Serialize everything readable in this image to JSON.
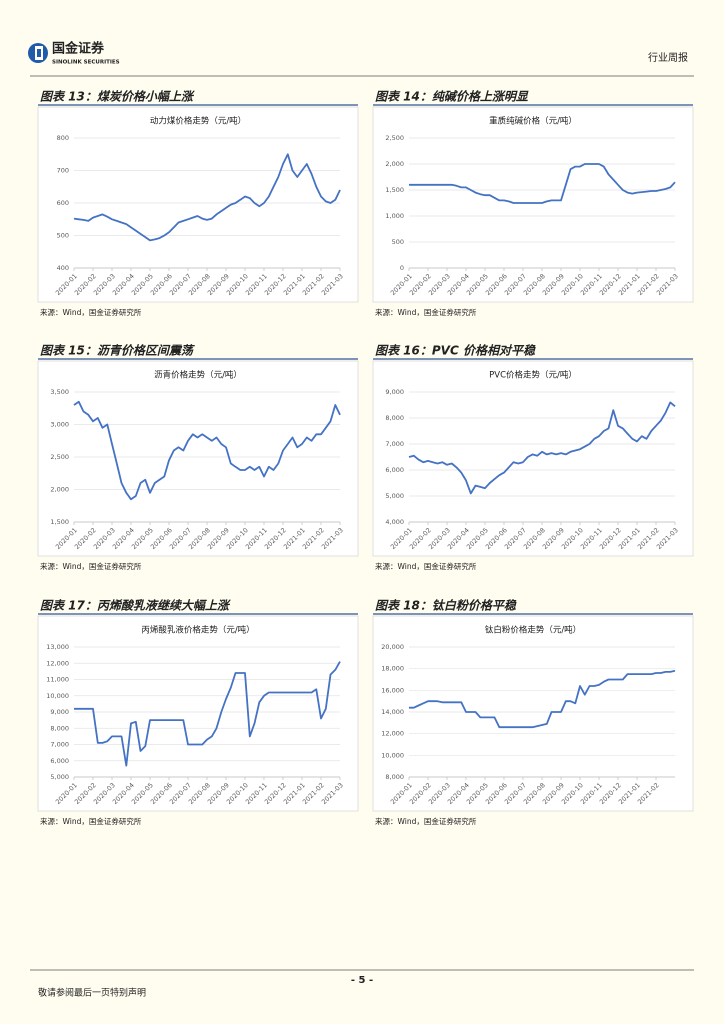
{
  "header": {
    "logo_name": "国金证券",
    "logo_english": "SINOLINK SECURITIES",
    "report_type": "行业周报"
  },
  "chart_data": [
    {
      "type": "line",
      "figure_title": "图表 13：煤炭价格小幅上涨",
      "title": "动力煤价格走势（元/吨）",
      "color": "#4472c4",
      "grid": true,
      "categories": [
        "2020-01",
        null,
        null,
        null,
        "2020-02",
        null,
        null,
        null,
        "2020-03",
        null,
        null,
        null,
        "2020-04",
        null,
        null,
        null,
        "2020-05",
        null,
        null,
        null,
        "2020-06",
        null,
        null,
        null,
        "2020-07",
        null,
        null,
        null,
        "2020-08",
        null,
        null,
        null,
        "2020-09",
        null,
        null,
        null,
        "2020-10",
        null,
        null,
        null,
        "2020-11",
        null,
        null,
        null,
        "2020-12",
        null,
        null,
        null,
        "2021-01",
        null,
        null,
        null,
        "2021-02",
        null,
        null,
        null,
        "2021-03"
      ],
      "values": [
        552,
        550,
        548,
        545,
        555,
        560,
        565,
        558,
        550,
        545,
        540,
        535,
        525,
        515,
        505,
        495,
        485,
        488,
        492,
        500,
        510,
        525,
        540,
        545,
        550,
        555,
        560,
        552,
        548,
        552,
        565,
        575,
        585,
        595,
        600,
        610,
        620,
        615,
        600,
        590,
        600,
        620,
        650,
        680,
        720,
        750,
        700,
        680,
        700,
        720,
        690,
        650,
        620,
        605,
        600,
        610,
        640
      ],
      "ylim": [
        400,
        800
      ],
      "yticks": [
        400,
        500,
        600,
        700,
        800
      ],
      "source": "来源：Wind，国金证券研究所"
    },
    {
      "type": "line",
      "figure_title": "图表 14：纯碱价格上涨明显",
      "title": "重质纯碱价格（元/吨）",
      "color": "#4472c4",
      "grid": true,
      "categories": [
        "2020-01",
        null,
        null,
        null,
        "2020-02",
        null,
        null,
        null,
        "2020-03",
        null,
        null,
        null,
        "2020-04",
        null,
        null,
        null,
        "2020-05",
        null,
        null,
        null,
        "2020-06",
        null,
        null,
        null,
        "2020-07",
        null,
        null,
        null,
        "2020-08",
        null,
        null,
        null,
        "2020-09",
        null,
        null,
        null,
        "2020-10",
        null,
        null,
        null,
        "2020-11",
        null,
        null,
        null,
        "2020-12",
        null,
        null,
        null,
        "2021-01",
        null,
        null,
        null,
        "2021-02",
        null,
        null,
        null,
        "2021-03"
      ],
      "values": [
        1600,
        1600,
        1600,
        1600,
        1600,
        1600,
        1600,
        1600,
        1600,
        1600,
        1580,
        1550,
        1550,
        1500,
        1450,
        1420,
        1400,
        1400,
        1350,
        1300,
        1300,
        1280,
        1250,
        1250,
        1250,
        1250,
        1250,
        1250,
        1250,
        1280,
        1300,
        1300,
        1300,
        1600,
        1900,
        1950,
        1950,
        2000,
        2000,
        2000,
        2000,
        1950,
        1800,
        1700,
        1600,
        1500,
        1450,
        1430,
        1450,
        1460,
        1470,
        1480,
        1480,
        1500,
        1520,
        1550,
        1650
      ],
      "ylim": [
        0,
        2500
      ],
      "yticks": [
        0,
        500,
        {
          "value": 1000,
          "label": "1,000"
        },
        {
          "value": 1500,
          "label": "1,500"
        },
        {
          "value": 2000,
          "label": "2,000"
        },
        {
          "value": 2500,
          "label": "2,500"
        }
      ],
      "source": "来源：Wind，国金证券研究所"
    },
    {
      "type": "line",
      "figure_title": "图表 15：沥青价格区间震荡",
      "title": "沥青价格走势（元/吨）",
      "color": "#4472c4",
      "grid": true,
      "categories": [
        "2020-01",
        null,
        null,
        null,
        "2020-02",
        null,
        null,
        null,
        "2020-03",
        null,
        null,
        null,
        "2020-04",
        null,
        null,
        null,
        "2020-05",
        null,
        null,
        null,
        "2020-06",
        null,
        null,
        null,
        "2020-07",
        null,
        null,
        null,
        "2020-08",
        null,
        null,
        null,
        "2020-09",
        null,
        null,
        null,
        "2020-10",
        null,
        null,
        null,
        "2020-11",
        null,
        null,
        null,
        "2020-12",
        null,
        null,
        null,
        "2021-01",
        null,
        null,
        null,
        "2021-02",
        null,
        null,
        null,
        "2021-03"
      ],
      "values": [
        3300,
        3350,
        3200,
        3150,
        3050,
        3100,
        2950,
        3000,
        2700,
        2400,
        2100,
        1950,
        1850,
        1900,
        2100,
        2150,
        1950,
        2100,
        2150,
        2200,
        2450,
        2600,
        2650,
        2600,
        2750,
        2850,
        2800,
        2850,
        2800,
        2750,
        2800,
        2700,
        2650,
        2400,
        2350,
        2300,
        2300,
        2350,
        2300,
        2350,
        2200,
        2350,
        2300,
        2400,
        2600,
        2700,
        2800,
        2650,
        2700,
        2800,
        2750,
        2850,
        2850,
        2950,
        3050,
        3300,
        3150
      ],
      "ylim": [
        1500,
        3500
      ],
      "yticks": [
        {
          "value": 1500,
          "label": "1,500"
        },
        {
          "value": 2000,
          "label": "2,000"
        },
        {
          "value": 2500,
          "label": "2,500"
        },
        {
          "value": 3000,
          "label": "3,000"
        },
        {
          "value": 3500,
          "label": "3,500"
        }
      ],
      "source": "来源：Wind，国金证券研究所"
    },
    {
      "type": "line",
      "figure_title": "图表 16：PVC 价格相对平稳",
      "title": "PVC价格走势（元/吨）",
      "color": "#4472c4",
      "grid": true,
      "categories": [
        "2020-01",
        null,
        null,
        null,
        "2020-02",
        null,
        null,
        null,
        "2020-03",
        null,
        null,
        null,
        "2020-04",
        null,
        null,
        null,
        "2020-05",
        null,
        null,
        null,
        "2020-06",
        null,
        null,
        null,
        "2020-07",
        null,
        null,
        null,
        "2020-08",
        null,
        null,
        null,
        "2020-09",
        null,
        null,
        null,
        "2020-10",
        null,
        null,
        null,
        "2020-11",
        null,
        null,
        null,
        "2020-12",
        null,
        null,
        null,
        "2021-01",
        null,
        null,
        null,
        "2021-02",
        null,
        null,
        null,
        "2021-03"
      ],
      "values": [
        6500,
        6550,
        6400,
        6300,
        6350,
        6300,
        6250,
        6300,
        6200,
        6250,
        6100,
        5900,
        5600,
        5100,
        5400,
        5350,
        5300,
        5500,
        5650,
        5800,
        5900,
        6100,
        6300,
        6250,
        6300,
        6500,
        6600,
        6550,
        6700,
        6600,
        6650,
        6600,
        6650,
        6600,
        6700,
        6750,
        6800,
        6900,
        7000,
        7200,
        7300,
        7500,
        7600,
        8300,
        7700,
        7600,
        7400,
        7200,
        7100,
        7300,
        7200,
        7500,
        7700,
        7900,
        8200,
        8600,
        8450
      ],
      "ylim": [
        4000,
        9000
      ],
      "yticks": [
        {
          "value": 4000,
          "label": "4,000"
        },
        {
          "value": 5000,
          "label": "5,000"
        },
        {
          "value": 6000,
          "label": "6,000"
        },
        {
          "value": 7000,
          "label": "7,000"
        },
        {
          "value": 8000,
          "label": "8,000"
        },
        {
          "value": 9000,
          "label": "9,000"
        }
      ],
      "source": "来源：Wind，国金证券研究所"
    },
    {
      "type": "line",
      "figure_title": "图表 17：丙烯酸乳液继续大幅上涨",
      "title": "丙烯酸乳液价格走势（元/吨）",
      "color": "#4472c4",
      "grid": true,
      "categories": [
        "2020-01",
        null,
        null,
        null,
        "2020-02",
        null,
        null,
        null,
        "2020-03",
        null,
        null,
        null,
        "2020-04",
        null,
        null,
        null,
        "2020-05",
        null,
        null,
        null,
        "2020-06",
        null,
        null,
        null,
        "2020-07",
        null,
        null,
        null,
        "2020-08",
        null,
        null,
        null,
        "2020-09",
        null,
        null,
        null,
        "2020-10",
        null,
        null,
        null,
        "2020-11",
        null,
        null,
        null,
        "2020-12",
        null,
        null,
        null,
        "2021-01",
        null,
        null,
        null,
        "2021-02",
        null,
        null,
        null,
        "2021-03"
      ],
      "values": [
        9200,
        9200,
        9200,
        9200,
        9200,
        7100,
        7100,
        7200,
        7500,
        7500,
        7500,
        5700,
        8300,
        8400,
        6600,
        6900,
        8500,
        8500,
        8500,
        8500,
        8500,
        8500,
        8500,
        8500,
        7000,
        7000,
        7000,
        7000,
        7300,
        7500,
        8000,
        9000,
        9800,
        10500,
        11400,
        11400,
        11400,
        7500,
        8300,
        9600,
        10000,
        10200,
        10200,
        10200,
        10200,
        10200,
        10200,
        10200,
        10200,
        10200,
        10200,
        10400,
        8600,
        9200,
        11300,
        11600,
        12100
      ],
      "ylim": [
        5000,
        13000
      ],
      "yticks": [
        {
          "value": 5000,
          "label": "5,000"
        },
        {
          "value": 6000,
          "label": "6,000"
        },
        {
          "value": 7000,
          "label": "7,000"
        },
        {
          "value": 8000,
          "label": "8,000"
        },
        {
          "value": 9000,
          "label": "9,000"
        },
        {
          "value": 10000,
          "label": "10,000"
        },
        {
          "value": 11000,
          "label": "11,000"
        },
        {
          "value": 12000,
          "label": "12,000"
        },
        {
          "value": 13000,
          "label": "13,000"
        }
      ],
      "source": "来源：Wind，国金证券研究所"
    },
    {
      "type": "line",
      "figure_title": "图表 18：钛白粉价格平稳",
      "title": "钛白粉价格走势（元/吨）",
      "color": "#4472c4",
      "grid": true,
      "categories": [
        "2020-01",
        null,
        null,
        null,
        "2020-02",
        null,
        null,
        null,
        "2020-03",
        null,
        null,
        null,
        "2020-04",
        null,
        null,
        null,
        "2020-05",
        null,
        null,
        null,
        "2020-06",
        null,
        null,
        null,
        "2020-07",
        null,
        null,
        null,
        "2020-08",
        null,
        null,
        null,
        "2020-09",
        null,
        null,
        null,
        "2020-10",
        null,
        null,
        null,
        "2020-11",
        null,
        null,
        null,
        "2020-12",
        null,
        null,
        null,
        "2021-01",
        null,
        null,
        null,
        "2021-02",
        null,
        null,
        null,
        null
      ],
      "values": [
        14400,
        14400,
        14600,
        14800,
        15000,
        15000,
        15000,
        14900,
        14900,
        14900,
        14900,
        14900,
        14000,
        14000,
        14000,
        13500,
        13500,
        13500,
        13500,
        12600,
        12600,
        12600,
        12600,
        12600,
        12600,
        12600,
        12600,
        12700,
        12800,
        12900,
        14000,
        14000,
        14000,
        15000,
        15000,
        14800,
        16400,
        15600,
        16400,
        16400,
        16500,
        16800,
        17000,
        17000,
        17000,
        17000,
        17500,
        17500,
        17500,
        17500,
        17500,
        17500,
        17600,
        17600,
        17700,
        17700,
        17800
      ],
      "ylim": [
        8000,
        20000
      ],
      "yticks": [
        {
          "value": 8000,
          "label": "8,000"
        },
        {
          "value": 10000,
          "label": "10,000"
        },
        {
          "value": 12000,
          "label": "12,000"
        },
        {
          "value": 14000,
          "label": "14,000"
        },
        {
          "value": 16000,
          "label": "16,000"
        },
        {
          "value": 18000,
          "label": "18,000"
        },
        {
          "value": 20000,
          "label": "20,000"
        }
      ],
      "source": "来源：Wind，国金证券研究所"
    }
  ],
  "footer": {
    "page": "- 5 -",
    "disclaimer": "敬请参阅最后一页特别声明"
  }
}
